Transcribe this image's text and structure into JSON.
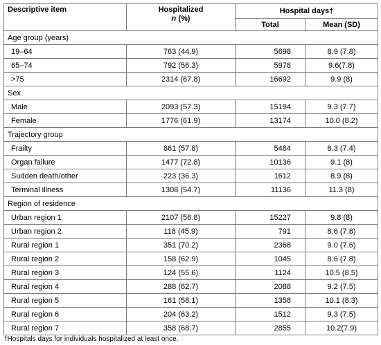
{
  "header": {
    "descriptive_item": "Descriptive item",
    "hospitalized": "Hospitalized",
    "hospitalized_unit_n": "n",
    "hospitalized_unit_pct": " (%)",
    "hospital_days": "Hospital days†",
    "total": "Total",
    "mean_sd": "Mean (SD)"
  },
  "groups": [
    {
      "label": "Age group (years)",
      "rows": [
        {
          "item": "19–64",
          "hospitalized": "763 (44.9)",
          "total": "5698",
          "mean_sd": "8.9 (7.8)"
        },
        {
          "item": "65–74",
          "hospitalized": "792 (56.3)",
          "total": "5978",
          "mean_sd": "9.6(7.8)"
        },
        {
          "item": ">75",
          "hospitalized": "2314 (67.8)",
          "total": "16692",
          "mean_sd": "9.9 (8)"
        }
      ]
    },
    {
      "label": "Sex",
      "rows": [
        {
          "item": "Male",
          "hospitalized": "2093 (57.3)",
          "total": "15194",
          "mean_sd": "9.3 (7.7)"
        },
        {
          "item": "Female",
          "hospitalized": "1776 (61.9)",
          "total": "13174",
          "mean_sd": "10.0 (8.2)"
        }
      ]
    },
    {
      "label": "Trajectory group",
      "rows": [
        {
          "item": "Frailty",
          "hospitalized": "861 (57.8)",
          "total": "5484",
          "mean_sd": "8.3 (7.4)"
        },
        {
          "item": "Organ failure",
          "hospitalized": "1477 (72.8)",
          "total": "10136",
          "mean_sd": "9.1 (8)"
        },
        {
          "item": "Sudden death/other",
          "hospitalized": "223 (36.3)",
          "total": "1612",
          "mean_sd": "8.9 (8)"
        },
        {
          "item": "Terminal illness",
          "hospitalized": "1308 (54.7)",
          "total": "11136",
          "mean_sd": "11.3 (8)"
        }
      ]
    },
    {
      "label": "Region of residence",
      "rows": [
        {
          "item": "Urban region 1",
          "hospitalized": "2107 (56.8)",
          "total": "15227",
          "mean_sd": "9.8 (8)"
        },
        {
          "item": "Urban region 2",
          "hospitalized": "118 (45.9)",
          "total": "791",
          "mean_sd": "8.6 (7.8)"
        },
        {
          "item": "Rural region 1",
          "hospitalized": "351 (70.2)",
          "total": "2368",
          "mean_sd": "9.0 (7.6)"
        },
        {
          "item": "Rural region 2",
          "hospitalized": "158 (62.9)",
          "total": "1045",
          "mean_sd": "8.6 (7.8)"
        },
        {
          "item": "Rural region 3",
          "hospitalized": "124 (55.6)",
          "total": "1124",
          "mean_sd": "10.5 (8.5)"
        },
        {
          "item": "Rural region 4",
          "hospitalized": "288 (62.7)",
          "total": "2088",
          "mean_sd": "9.2 (7.5)"
        },
        {
          "item": "Rural region 5",
          "hospitalized": "161 (58.1)",
          "total": "1358",
          "mean_sd": "10.1 (8.3)"
        },
        {
          "item": "Rural region 6",
          "hospitalized": "204 (63.2)",
          "total": "1512",
          "mean_sd": "9.3 (7.5)"
        },
        {
          "item": "Rural region 7",
          "hospitalized": "358 (68.7)",
          "total": "2855",
          "mean_sd": "10.2(7.9)"
        }
      ]
    }
  ],
  "footnote": "†Hospitals days for individuals hospitalized at least once."
}
